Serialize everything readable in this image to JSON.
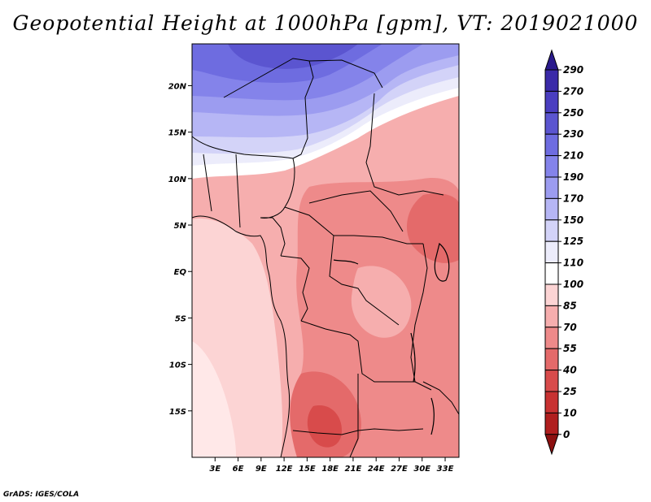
{
  "title": "Geopotential Height at 1000hPa [gpm], VT: 2019021000",
  "credit": "GrADS: IGES/COLA",
  "map": {
    "lon_range": [
      0,
      34.8
    ],
    "lat_range": [
      -20,
      24.5
    ],
    "lat_ticks": [
      "20N",
      "15N",
      "10N",
      "5N",
      "EQ",
      "5S",
      "10S",
      "15S"
    ],
    "lon_ticks": [
      "3E",
      "6E",
      "9E",
      "12E",
      "15E",
      "18E",
      "21E",
      "24E",
      "27E",
      "30E",
      "33E"
    ]
  },
  "colorbar": {
    "labels": [
      "290",
      "270",
      "250",
      "230",
      "210",
      "190",
      "170",
      "150",
      "125",
      "110",
      "100",
      "85",
      "70",
      "55",
      "40",
      "25",
      "10",
      "0"
    ],
    "colors_top_to_bottom": [
      "#2a1a8c",
      "#3a2aa8",
      "#4a3ec0",
      "#5b55d0",
      "#6e6ce0",
      "#8483ea",
      "#9c9cf0",
      "#b6b6f5",
      "#d3d3f8",
      "#ececfb",
      "#ffffff",
      "#fcd4d4",
      "#f6aeae",
      "#ee8a8a",
      "#e46a6a",
      "#d84b4b",
      "#c83232",
      "#b01e1e",
      "#8c1010"
    ]
  }
}
